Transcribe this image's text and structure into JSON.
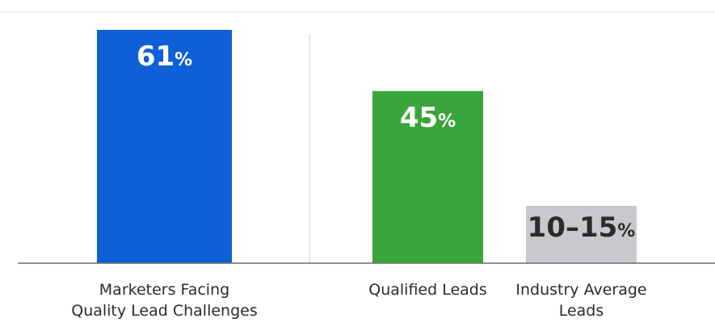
{
  "chart_data": {
    "type": "bar",
    "colors": {
      "bar_1": "#0f5fd6",
      "bar_2": "#3aa53a",
      "bar_3": "#c8c9cc",
      "label_light": "#ffffff",
      "label_dark": "#2b2b2b",
      "baseline": "#6e6e6e",
      "divider": "#d9d9d9"
    },
    "ylim": [
      0,
      67
    ],
    "bars": [
      {
        "value": 61,
        "label_number": "61",
        "label_unit": "%",
        "category_lines": [
          "Marketers Facing",
          "Quality Lead Challenges"
        ]
      },
      {
        "value": 45,
        "label_number": "45",
        "label_unit": "%",
        "category_lines": [
          "Qualified Leads"
        ]
      },
      {
        "value_range": [
          10,
          15
        ],
        "value": 15,
        "label_number": "10–15",
        "label_unit": "%",
        "category_lines": [
          "Industry Average",
          "Leads"
        ]
      }
    ]
  }
}
